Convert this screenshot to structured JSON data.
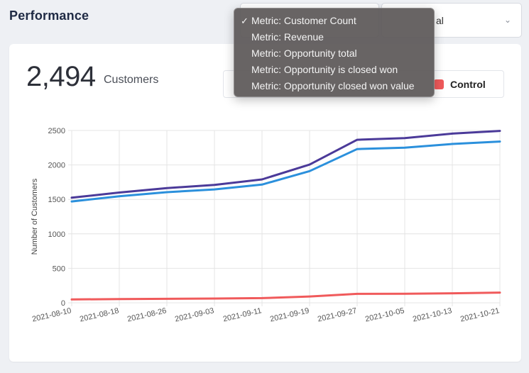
{
  "header": {
    "title": "Performance",
    "second_select_value": "al"
  },
  "summary": {
    "value": "2,494",
    "unit": "Customers"
  },
  "legend": {
    "label": "Control",
    "color": "#f05a5b"
  },
  "metric_menu": {
    "items": [
      {
        "label": "Metric: Customer Count",
        "checked": true
      },
      {
        "label": "Metric: Revenue",
        "checked": false
      },
      {
        "label": "Metric: Opportunity total",
        "checked": false
      },
      {
        "label": "Metric: Opportunity is closed won",
        "checked": false
      },
      {
        "label": "Metric: Opportunity closed won value",
        "checked": false
      }
    ],
    "check_glyph": "✓"
  },
  "chart_data": {
    "type": "line",
    "ylabel": "Number of Customers",
    "xlabel": "",
    "ylim": [
      0,
      2500
    ],
    "yticks": [
      0,
      500,
      1000,
      1500,
      2000,
      2500
    ],
    "categories": [
      "2021-08-10",
      "2021-08-18",
      "2021-08-26",
      "2021-09-03",
      "2021-09-11",
      "2021-09-19",
      "2021-09-27",
      "2021-10-05",
      "2021-10-13",
      "2021-10-21"
    ],
    "grid": true,
    "series": [
      {
        "color": "#4b3a99",
        "values": [
          1525,
          1600,
          1665,
          1710,
          1790,
          2005,
          2365,
          2390,
          2455,
          2494
        ]
      },
      {
        "color": "#2b90dc",
        "values": [
          1470,
          1545,
          1605,
          1645,
          1715,
          1910,
          2230,
          2250,
          2305,
          2340
        ]
      },
      {
        "name": "Control",
        "color": "#f05a5b",
        "values": [
          48,
          55,
          58,
          62,
          68,
          92,
          130,
          132,
          138,
          148
        ]
      }
    ]
  }
}
